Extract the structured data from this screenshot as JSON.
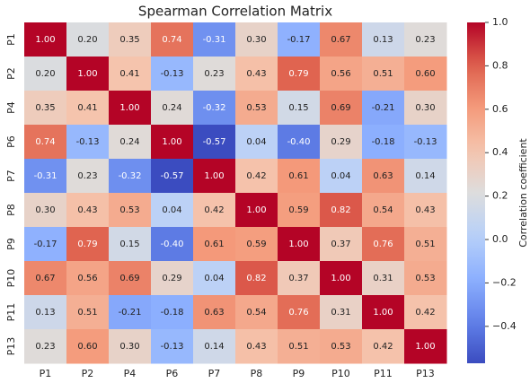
{
  "chart_data": {
    "type": "heatmap",
    "title": "Spearman Correlation Matrix",
    "categories": [
      "P1",
      "P2",
      "P4",
      "P6",
      "P7",
      "P8",
      "P9",
      "P10",
      "P11",
      "P13"
    ],
    "values": [
      [
        1.0,
        0.2,
        0.35,
        0.74,
        -0.31,
        0.3,
        -0.17,
        0.67,
        0.13,
        0.23
      ],
      [
        0.2,
        1.0,
        0.41,
        -0.13,
        0.23,
        0.43,
        0.79,
        0.56,
        0.51,
        0.6
      ],
      [
        0.35,
        0.41,
        1.0,
        0.24,
        -0.32,
        0.53,
        0.15,
        0.69,
        -0.21,
        0.3
      ],
      [
        0.74,
        -0.13,
        0.24,
        1.0,
        -0.57,
        0.04,
        -0.4,
        0.29,
        -0.18,
        -0.13
      ],
      [
        -0.31,
        0.23,
        -0.32,
        -0.57,
        1.0,
        0.42,
        0.61,
        0.04,
        0.63,
        0.14
      ],
      [
        0.3,
        0.43,
        0.53,
        0.04,
        0.42,
        1.0,
        0.59,
        0.82,
        0.54,
        0.43
      ],
      [
        -0.17,
        0.79,
        0.15,
        -0.4,
        0.61,
        0.59,
        1.0,
        0.37,
        0.76,
        0.51
      ],
      [
        0.67,
        0.56,
        0.69,
        0.29,
        0.04,
        0.82,
        0.37,
        1.0,
        0.31,
        0.53
      ],
      [
        0.13,
        0.51,
        -0.21,
        -0.18,
        0.63,
        0.54,
        0.76,
        0.31,
        1.0,
        0.42
      ],
      [
        0.23,
        0.6,
        0.3,
        -0.13,
        0.14,
        0.43,
        0.51,
        0.53,
        0.42,
        1.0
      ]
    ],
    "value_labels": [
      [
        "1.00",
        "0.20",
        "0.35",
        "0.74",
        "-0.31",
        "0.30",
        "-0.17",
        "0.67",
        "0.13",
        "0.23"
      ],
      [
        "0.20",
        "1.00",
        "0.41",
        "-0.13",
        "0.23",
        "0.43",
        "0.79",
        "0.56",
        "0.51",
        "0.60"
      ],
      [
        "0.35",
        "0.41",
        "1.00",
        "0.24",
        "-0.32",
        "0.53",
        "0.15",
        "0.69",
        "-0.21",
        "0.30"
      ],
      [
        "0.74",
        "-0.13",
        "0.24",
        "1.00",
        "-0.57",
        "0.04",
        "-0.40",
        "0.29",
        "-0.18",
        "-0.13"
      ],
      [
        "-0.31",
        "0.23",
        "-0.32",
        "-0.57",
        "1.00",
        "0.42",
        "0.61",
        "0.04",
        "0.63",
        "0.14"
      ],
      [
        "0.30",
        "0.43",
        "0.53",
        "0.04",
        "0.42",
        "1.00",
        "0.59",
        "0.82",
        "0.54",
        "0.43"
      ],
      [
        "-0.17",
        "0.79",
        "0.15",
        "-0.40",
        "0.61",
        "0.59",
        "1.00",
        "0.37",
        "0.76",
        "0.51"
      ],
      [
        "0.67",
        "0.56",
        "0.69",
        "0.29",
        "0.04",
        "0.82",
        "0.37",
        "1.00",
        "0.31",
        "0.53"
      ],
      [
        "0.13",
        "0.51",
        "-0.21",
        "-0.18",
        "0.63",
        "0.54",
        "0.76",
        "0.31",
        "1.00",
        "0.42"
      ],
      [
        "0.23",
        "0.60",
        "0.30",
        "-0.13",
        "0.14",
        "0.43",
        "0.51",
        "0.53",
        "0.42",
        "1.00"
      ]
    ],
    "colormap": "coolwarm",
    "colorbar_label": "Correlation coefficient",
    "colorbar_lim": [
      -0.57,
      1.0
    ],
    "colorbar_ticks": [
      {
        "value": -0.4,
        "label": "−0.4"
      },
      {
        "value": -0.2,
        "label": "−0.2"
      },
      {
        "value": 0.0,
        "label": "0.0"
      },
      {
        "value": 0.2,
        "label": "0.2"
      },
      {
        "value": 0.4,
        "label": "0.4"
      },
      {
        "value": 0.6,
        "label": "0.6"
      },
      {
        "value": 0.8,
        "label": "0.8"
      },
      {
        "value": 1.0,
        "label": "1.0"
      }
    ]
  }
}
